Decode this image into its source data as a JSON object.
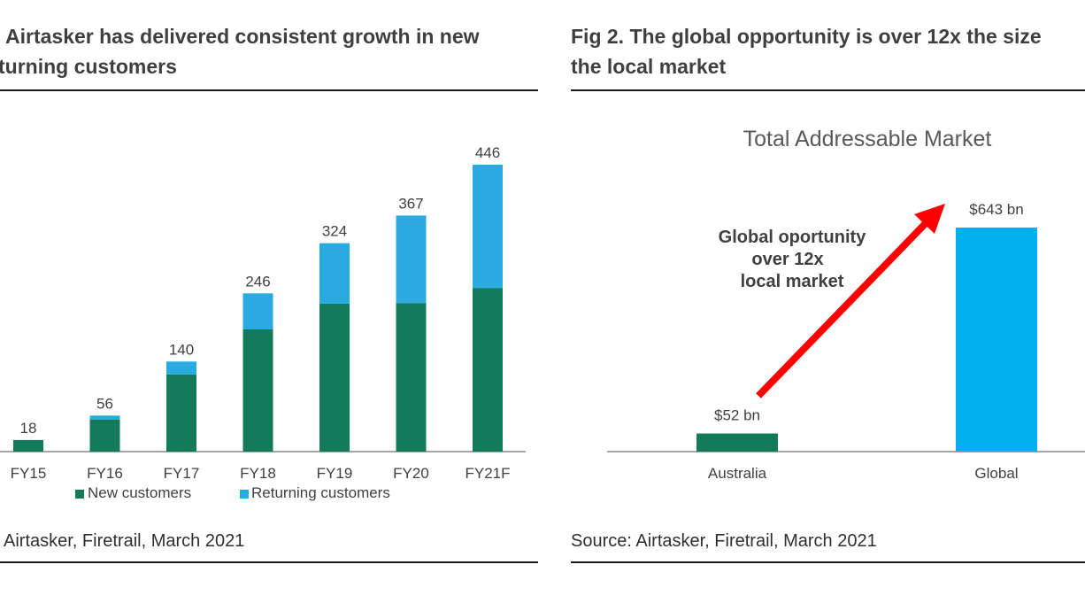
{
  "figure_left": {
    "title_line1": "Airtasker has delivered consistent growth in new",
    "title_line2": "turning customers",
    "source": "Airtasker, Firetrail, March 2021"
  },
  "figure_right": {
    "title_line1": "Fig 2. The global opportunity is over 12x the size",
    "title_line2": "the local market",
    "source": "Source: Airtasker, Firetrail, March 2021",
    "annotation": [
      "Global oportunity",
      "over 12x",
      "local market"
    ]
  },
  "colors": {
    "new_customers": "#137a5a",
    "returning_customers": "#29abe2",
    "australia": "#137a5a",
    "global": "#00b0f0",
    "arrow": "#ff0000"
  },
  "chart_data": [
    {
      "type": "bar",
      "stacked": true,
      "categories": [
        "FY15",
        "FY16",
        "FY17",
        "FY18",
        "FY19",
        "FY20",
        "FY21F"
      ],
      "totals": [
        18,
        56,
        140,
        246,
        324,
        367,
        446
      ],
      "series": [
        {
          "name": "New customers",
          "values": [
            18,
            50,
            120,
            190,
            230,
            231,
            254
          ]
        },
        {
          "name": "Returning customers",
          "values": [
            0,
            6,
            20,
            56,
            94,
            136,
            192
          ]
        }
      ],
      "ylim": [
        0,
        480
      ],
      "legend_position": "bottom",
      "grid": false
    },
    {
      "type": "bar",
      "title": "Total Addressable Market",
      "categories": [
        "Australia",
        "Global"
      ],
      "values": [
        52,
        643
      ],
      "labels": [
        "$52 bn",
        "$643 bn"
      ],
      "ylim": [
        0,
        800
      ],
      "grid": false
    }
  ]
}
